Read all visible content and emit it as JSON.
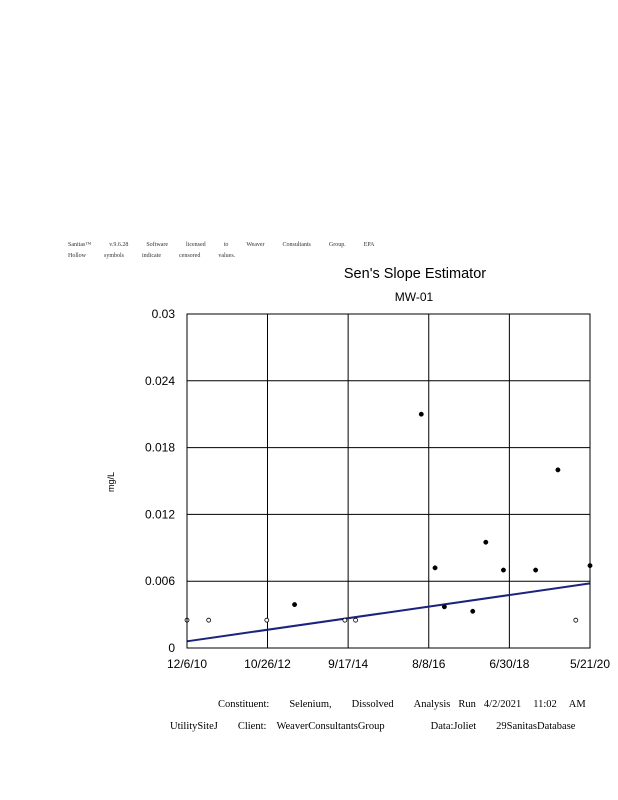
{
  "header": {
    "line1": [
      "Sanitas™",
      "v.9.6.28",
      "Software",
      "licensed",
      "to",
      "Weaver",
      "Consultants",
      "Group.",
      "EPA"
    ],
    "line2": [
      "Hollow",
      "symbols",
      "indicate",
      "censored",
      "values."
    ]
  },
  "chart_data": {
    "type": "scatter",
    "title": "Sen's Slope Estimator",
    "subtitle": "MW-01",
    "ylabel": "mg/L",
    "xlabel": "",
    "x_tick_labels": [
      "12/6/10",
      "10/26/12",
      "9/17/14",
      "8/8/16",
      "6/30/18",
      "5/21/20"
    ],
    "x_tick_dates": [
      "2010-12-06",
      "2012-10-26",
      "2014-09-17",
      "2016-08-08",
      "2018-06-30",
      "2020-05-21"
    ],
    "y_ticks": [
      0,
      0.006,
      0.012,
      0.018,
      0.024,
      0.03
    ],
    "y_tick_labels": [
      "0",
      "0.006",
      "0.012",
      "0.018",
      "0.024",
      "0.03"
    ],
    "xlim": [
      "2010-12-06",
      "2020-05-21"
    ],
    "ylim": [
      0,
      0.03
    ],
    "grid": true,
    "points": [
      {
        "x": "2010-12-06",
        "y": 0.0025,
        "censored": true
      },
      {
        "x": "2011-06-10",
        "y": 0.0025,
        "censored": true
      },
      {
        "x": "2012-10-20",
        "y": 0.0025,
        "censored": true
      },
      {
        "x": "2013-06-15",
        "y": 0.0039,
        "censored": false
      },
      {
        "x": "2014-08-20",
        "y": 0.0025,
        "censored": true
      },
      {
        "x": "2014-11-20",
        "y": 0.0025,
        "censored": true
      },
      {
        "x": "2016-06-05",
        "y": 0.021,
        "censored": false
      },
      {
        "x": "2016-10-01",
        "y": 0.0072,
        "censored": false
      },
      {
        "x": "2016-12-20",
        "y": 0.0037,
        "censored": false
      },
      {
        "x": "2017-08-20",
        "y": 0.0033,
        "censored": false
      },
      {
        "x": "2017-12-10",
        "y": 0.0095,
        "censored": false
      },
      {
        "x": "2018-05-10",
        "y": 0.007,
        "censored": false
      },
      {
        "x": "2019-02-10",
        "y": 0.007,
        "censored": false
      },
      {
        "x": "2019-08-20",
        "y": 0.016,
        "censored": false
      },
      {
        "x": "2020-01-20",
        "y": 0.0025,
        "censored": true
      },
      {
        "x": "2020-05-21",
        "y": 0.0074,
        "censored": false
      }
    ],
    "trend_line": [
      {
        "x": "2010-12-06",
        "y": 0.0006
      },
      {
        "x": "2020-05-21",
        "y": 0.0058
      }
    ],
    "colors": {
      "trend": "#1a237e",
      "points": "#000000",
      "grid": "#000000"
    }
  },
  "footer": {
    "line1": [
      "Constituent:",
      "Selenium,",
      "Dissolved",
      "Analysis",
      "Run",
      "4/2/2021",
      "11:02",
      "AM"
    ],
    "line2": [
      "UtilitySiteJ",
      "Client:",
      "WeaverConsultantsGroup",
      "Data:Joliet",
      "29SanitasDatabase"
    ]
  }
}
